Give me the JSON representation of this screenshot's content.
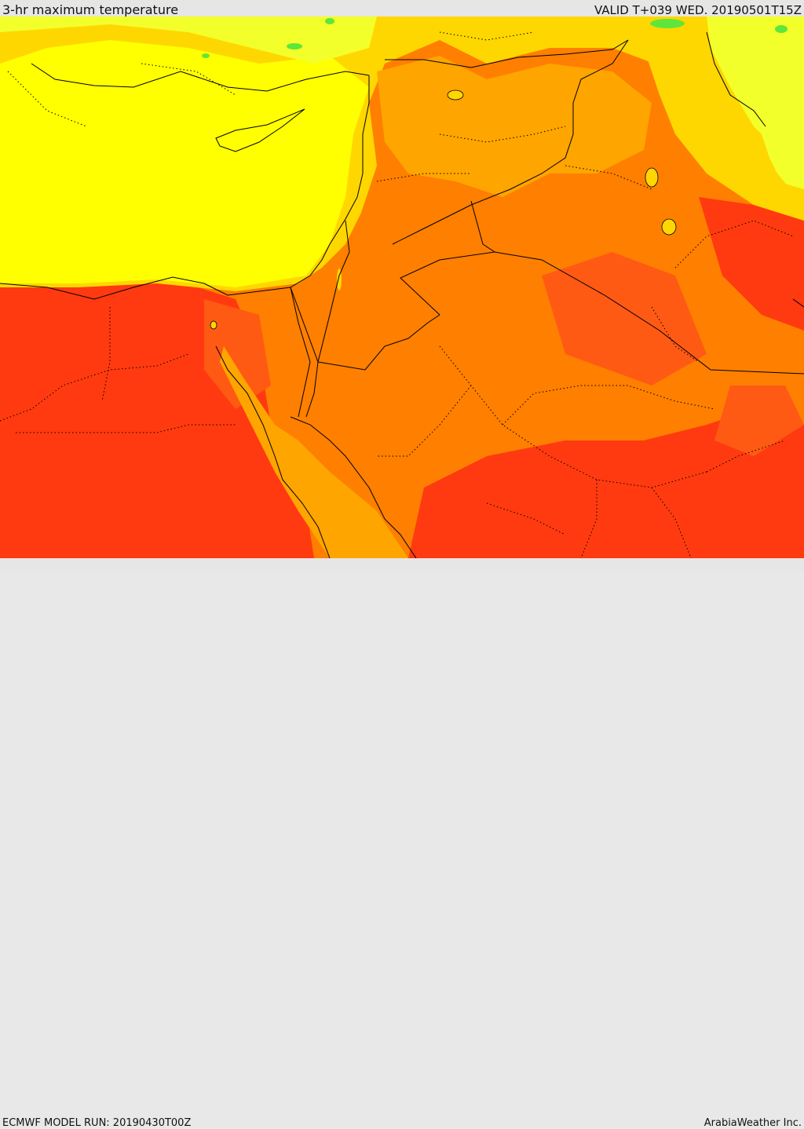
{
  "header": {
    "title": "3-hr maximum temperature",
    "valid": "VALID T+039 WED. 20190501T15Z"
  },
  "footer": {
    "model_run": "ECMWF MODEL RUN: 20190430T00Z",
    "credit": "ArabiaWeather Inc."
  },
  "colors": {
    "cool_green": "#5ee63c",
    "light_yellow": "#f2ff2a",
    "yellow": "#ffff00",
    "gold": "#ffd700",
    "orange_light": "#ffa500",
    "orange": "#ff7f00",
    "orange_red": "#ff5a14",
    "red": "#ff3a10"
  }
}
